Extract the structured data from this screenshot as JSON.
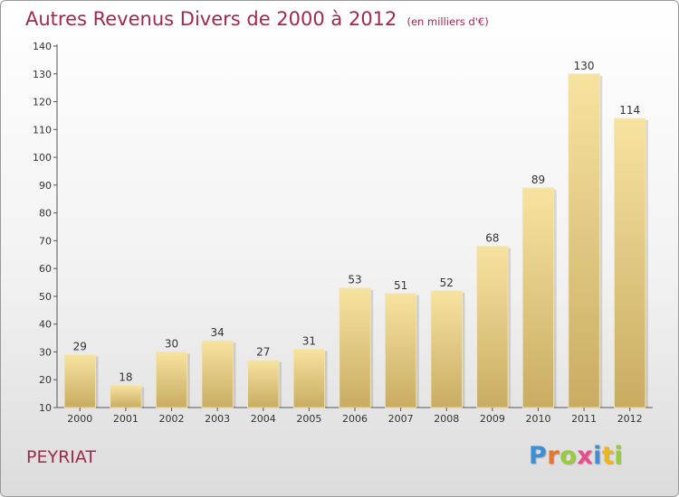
{
  "chart_data": {
    "type": "bar",
    "title": "Autres Revenus Divers de 2000 à 2012",
    "subtitle": "(en milliers d'€)",
    "categories": [
      "2000",
      "2001",
      "2002",
      "2003",
      "2004",
      "2005",
      "2006",
      "2007",
      "2008",
      "2009",
      "2010",
      "2011",
      "2012"
    ],
    "values": [
      29,
      18,
      30,
      34,
      27,
      31,
      53,
      51,
      52,
      68,
      89,
      130,
      114
    ],
    "ylim": [
      10,
      140
    ],
    "yticks": [
      10,
      20,
      30,
      40,
      50,
      60,
      70,
      80,
      90,
      100,
      110,
      120,
      130,
      140
    ],
    "grid": false,
    "bar_color_light": "#f7e3a0",
    "bar_color_dark": "#c9ac62",
    "title_color": "#a3284d"
  },
  "location": "PEYRIAT",
  "logo": {
    "letters": [
      "P",
      "r",
      "o",
      "x",
      "i",
      "t",
      "i"
    ],
    "colors": [
      "#3b8fd6",
      "#e8762c",
      "#9acb3c",
      "#e84c8a",
      "#3b8fd6",
      "#f0b41c",
      "#9acb3c"
    ]
  }
}
